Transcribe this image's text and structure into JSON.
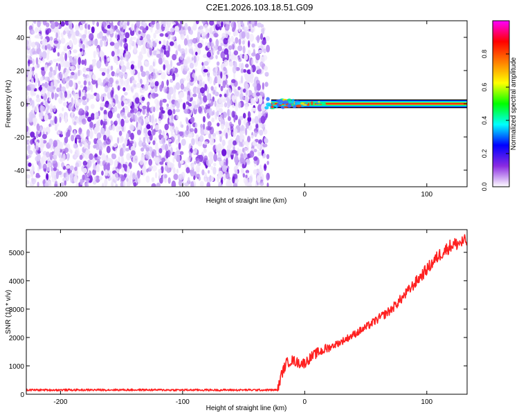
{
  "figure": {
    "title": "C2E1.2026.103.18.51.G09"
  },
  "chart_data": [
    {
      "type": "heatmap",
      "xlabel": "Height of straight line (km)",
      "ylabel": "Frequency (Hz)",
      "xlim": [
        -228,
        133
      ],
      "ylim": [
        -50,
        50
      ],
      "xticks": [
        -200,
        -100,
        0,
        100
      ],
      "yticks": [
        -40,
        -20,
        0,
        20,
        40
      ],
      "noise_region": {
        "x_from": -228,
        "x_to": -30,
        "y_from": -50,
        "y_to": 50
      },
      "signal_band": {
        "x_from": -32,
        "x_to": 133,
        "center_y": 0,
        "halfwidth_y": 1.5
      },
      "colorbar": {
        "label": "Normalized spectral amplitude",
        "range": [
          0,
          1
        ],
        "ticks": [
          "0.0",
          "0.2",
          "0.4",
          "0.6",
          "0.8"
        ],
        "colors": [
          "#ffffff",
          "#8a2be2",
          "#0000ff",
          "#00ffff",
          "#00ff00",
          "#ffff00",
          "#ff8000",
          "#ff0000",
          "#ff00ff"
        ]
      },
      "grid": false
    },
    {
      "type": "line",
      "xlabel": "Height of straight line (km)",
      "ylabel": "SNR (10 * v/v)",
      "xlim": [
        -228,
        133
      ],
      "ylim": [
        0,
        5800
      ],
      "xticks": [
        -200,
        -100,
        0,
        100
      ],
      "yticks": [
        0,
        1000,
        2000,
        3000,
        4000,
        5000
      ],
      "grid": false,
      "series": [
        {
          "color": "#ff2020",
          "points": [
            [
              -228,
              150
            ],
            [
              -200,
              150
            ],
            [
              -150,
              155
            ],
            [
              -100,
              150
            ],
            [
              -50,
              150
            ],
            [
              -22,
              150
            ],
            [
              -19,
              700
            ],
            [
              -15,
              1100
            ],
            [
              -10,
              1200
            ],
            [
              -5,
              1100
            ],
            [
              0,
              1100
            ],
            [
              5,
              1300
            ],
            [
              10,
              1450
            ],
            [
              15,
              1550
            ],
            [
              20,
              1650
            ],
            [
              30,
              1850
            ],
            [
              40,
              2100
            ],
            [
              50,
              2350
            ],
            [
              60,
              2650
            ],
            [
              70,
              2950
            ],
            [
              80,
              3400
            ],
            [
              90,
              3900
            ],
            [
              100,
              4400
            ],
            [
              110,
              4900
            ],
            [
              120,
              5250
            ],
            [
              133,
              5400
            ]
          ]
        }
      ]
    }
  ]
}
